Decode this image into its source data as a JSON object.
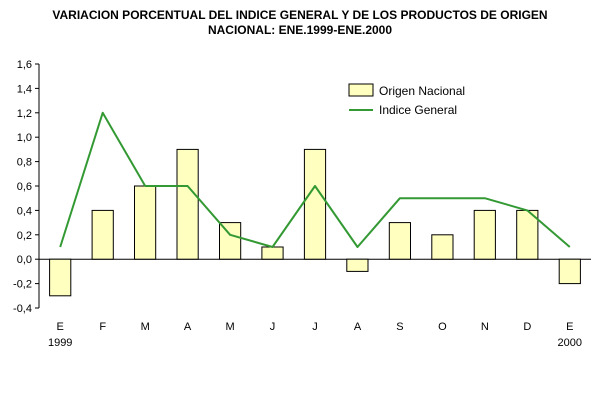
{
  "chart_data": {
    "type": "bar",
    "title_lines": [
      "VARIACION PORCENTUAL DEL INDICE GENERAL Y DE LOS PRODUCTOS DE ORIGEN",
      "NACIONAL: ENE.1999-ENE.2000"
    ],
    "categories": [
      "E",
      "F",
      "M",
      "A",
      "M",
      "J",
      "J",
      "A",
      "S",
      "O",
      "N",
      "D",
      "E"
    ],
    "category_sublabels": [
      "1999",
      "",
      "",
      "",
      "",
      "",
      "",
      "",
      "",
      "",
      "",
      "",
      "2000"
    ],
    "series": [
      {
        "name": "Origen Nacional",
        "kind": "bar",
        "color": "#ffffc0",
        "values": [
          -0.3,
          0.4,
          0.6,
          0.9,
          0.3,
          0.1,
          0.9,
          -0.1,
          0.3,
          0.2,
          0.4,
          0.4,
          -0.2
        ]
      },
      {
        "name": "Indice General",
        "kind": "line",
        "color": "#339933",
        "values": [
          0.1,
          1.2,
          0.6,
          0.6,
          0.2,
          0.1,
          0.6,
          0.1,
          0.5,
          0.5,
          0.5,
          0.4,
          0.1
        ]
      }
    ],
    "ylim": [
      -0.4,
      1.6
    ],
    "yticks": [
      "-0,4",
      "-0,2",
      "0,0",
      "0,2",
      "0,4",
      "0,6",
      "0,8",
      "1,0",
      "1,2",
      "1,4",
      "1,6"
    ],
    "xlabel": "",
    "ylabel": "",
    "grid": false,
    "legend_position": "top-right"
  }
}
